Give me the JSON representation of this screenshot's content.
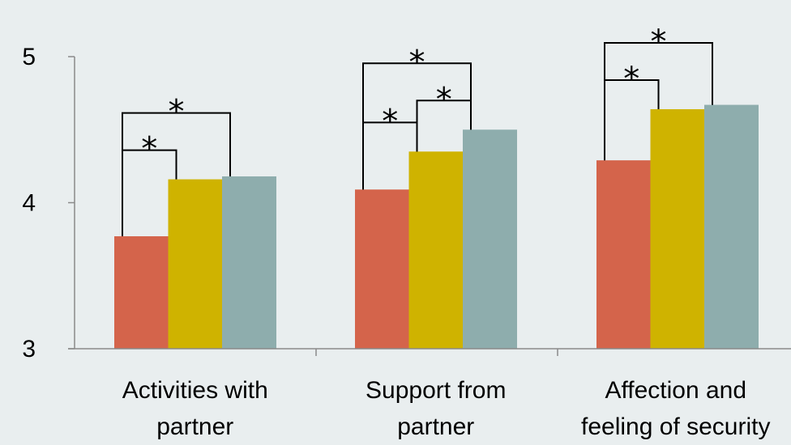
{
  "chart_data": {
    "type": "bar",
    "categories": [
      [
        "Activities with",
        "partner"
      ],
      [
        "Support from",
        "partner"
      ],
      [
        "Affection and",
        "feeling of security"
      ]
    ],
    "series": [
      {
        "color": "#d4644b",
        "values": [
          3.77,
          4.09,
          4.29
        ]
      },
      {
        "color": "#cfb300",
        "values": [
          4.16,
          4.35,
          4.64
        ]
      },
      {
        "color": "#8eadad",
        "values": [
          4.18,
          4.5,
          4.67
        ]
      }
    ],
    "ylim": [
      3,
      5
    ],
    "yticks": [
      3,
      4,
      5
    ],
    "ytick_labels": [
      "3",
      "4",
      "5"
    ],
    "grid": false,
    "legend": "none",
    "significance": [
      {
        "category": 0,
        "from": 0,
        "to": 1,
        "label": "*"
      },
      {
        "category": 0,
        "from": 0,
        "to": 2,
        "label": "*"
      },
      {
        "category": 1,
        "from": 0,
        "to": 1,
        "label": "*"
      },
      {
        "category": 1,
        "from": 1,
        "to": 2,
        "label": "*"
      },
      {
        "category": 1,
        "from": 0,
        "to": 2,
        "label": "*"
      },
      {
        "category": 2,
        "from": 0,
        "to": 1,
        "label": "*"
      },
      {
        "category": 2,
        "from": 0,
        "to": 2,
        "label": "*"
      }
    ],
    "colors": {
      "axis": "#8a8a8a",
      "bracket": "#000000",
      "background": "#e9eeef"
    }
  }
}
